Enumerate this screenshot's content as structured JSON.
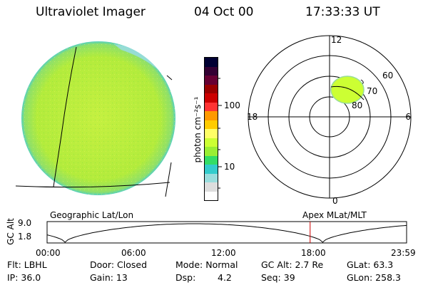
{
  "header": {
    "title": "Ultraviolet Imager",
    "date": "04 Oct 00",
    "time": "17:33:33 UT"
  },
  "colorbar": {
    "unit_label": "photon cm⁻²s⁻¹",
    "ticks": [
      "100",
      "10"
    ],
    "colors": [
      "#000033",
      "#330033",
      "#660033",
      "#990000",
      "#cc0000",
      "#ff3333",
      "#ff9900",
      "#ffcc00",
      "#ffff66",
      "#ccff33",
      "#99ee33",
      "#33dd66",
      "#33cccc",
      "#99dddd",
      "#dddddd",
      "#ffffff"
    ]
  },
  "polar": {
    "mlt_labels": [
      "12",
      "18",
      "6",
      "0"
    ],
    "lat_labels": [
      "60",
      "70",
      "80"
    ]
  },
  "altitude": {
    "ylabel": "GC Alt",
    "ytick_top": "9.0",
    "ytick_bottom": "1.8",
    "left_caption": "Geographic Lat/Lon",
    "right_caption": "Apex  MLat/MLT",
    "xticks": [
      "00:00",
      "06:00",
      "12:00",
      "18:00",
      "23:59"
    ],
    "marker_time_hours": 17.56
  },
  "status": {
    "filter": "Flt: LBHL",
    "ip": "IP: 36.0",
    "door": "Door: Closed",
    "gain": "Gain: 13",
    "mode": "Mode: Normal",
    "dsp_label": "Dsp:",
    "dsp_value": "4.2",
    "gc_alt": "GC Alt: 2.7 Re",
    "seq": "Seq: 39",
    "glat": "GLat:  63.3",
    "glon": "GLon: 258.3"
  },
  "colors": {
    "disk_fill": "#b6ee3a",
    "disk_edge": "#44cccc",
    "oval_fill": "#ccff33",
    "marker": "#cc0000"
  }
}
